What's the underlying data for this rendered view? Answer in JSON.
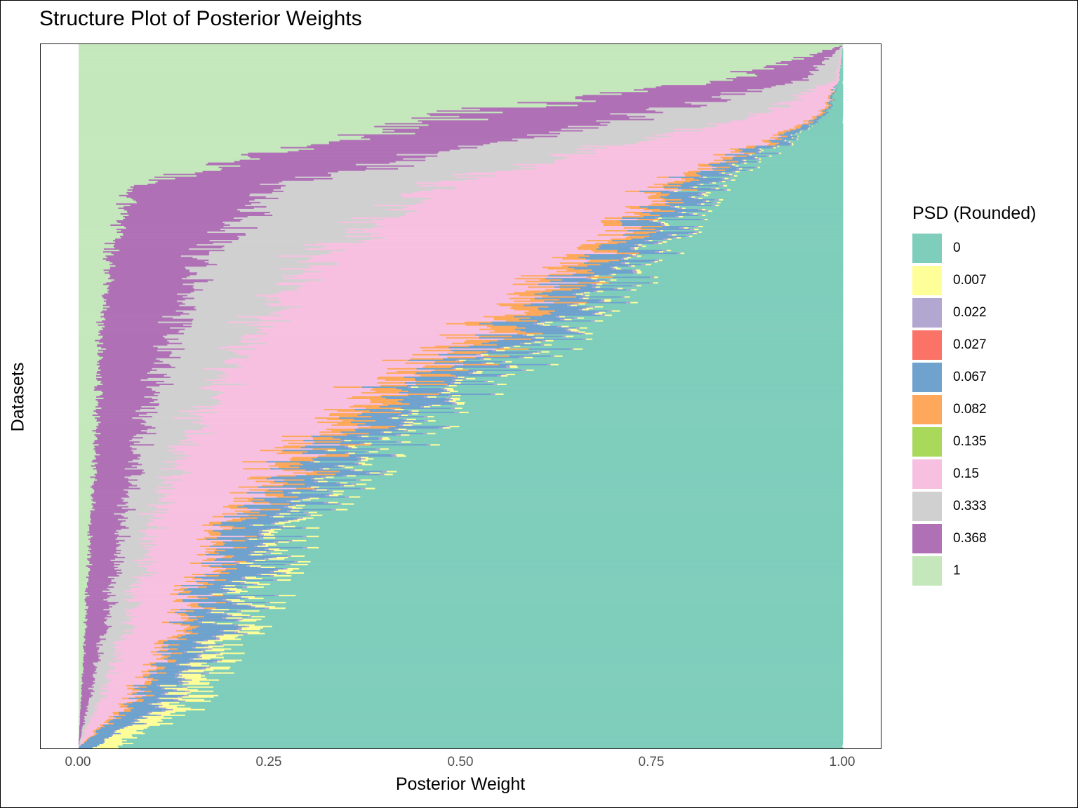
{
  "chart_data": {
    "type": "bar",
    "orientation": "horizontal",
    "stacked": true,
    "title": "Structure Plot of Posterior Weights",
    "xlabel": "Posterior Weight",
    "ylabel": "Datasets",
    "xlim": [
      0,
      1
    ],
    "x_ticks": [
      "0.00",
      "0.25",
      "0.50",
      "0.75",
      "1.00"
    ],
    "legend_title": "PSD (Rounded)",
    "legend_position": "right",
    "grid": false,
    "series": [
      {
        "name": "0",
        "color": "#7fcdbb"
      },
      {
        "name": "0.007",
        "color": "#ffff99"
      },
      {
        "name": "0.022",
        "color": "#b1a7d1"
      },
      {
        "name": "0.027",
        "color": "#fb7266"
      },
      {
        "name": "0.067",
        "color": "#6fa2cd"
      },
      {
        "name": "0.082",
        "color": "#fda85a"
      },
      {
        "name": "0.135",
        "color": "#a8d95b"
      },
      {
        "name": "0.15",
        "color": "#f8c0e0"
      },
      {
        "name": "0.333",
        "color": "#d0d0d0"
      },
      {
        "name": "0.368",
        "color": "#b070b6"
      },
      {
        "name": "1",
        "color": "#c4e8bc"
      }
    ],
    "approx_profile": {
      "description_of_rows": "datasets sorted top to bottom; approximate cumulative posterior weight boundaries at selected relative row positions (0 = top, 1 = bottom)",
      "row_position": [
        0.0,
        0.05,
        0.1,
        0.2,
        0.3,
        0.4,
        0.5,
        0.6,
        0.7,
        0.8,
        0.9,
        0.95,
        1.0
      ],
      "weight_1": [
        1.0,
        0.85,
        0.5,
        0.07,
        0.04,
        0.03,
        0.025,
        0.02,
        0.015,
        0.01,
        0.005,
        0.002,
        0.0
      ],
      "weight_0_368": [
        0.0,
        0.1,
        0.25,
        0.18,
        0.12,
        0.1,
        0.07,
        0.05,
        0.04,
        0.03,
        0.015,
        0.008,
        0.0
      ],
      "weight_0_333": [
        0.0,
        0.04,
        0.15,
        0.2,
        0.15,
        0.1,
        0.08,
        0.05,
        0.04,
        0.03,
        0.02,
        0.01,
        0.0
      ],
      "weight_0_15": [
        0.0,
        0.005,
        0.08,
        0.3,
        0.35,
        0.3,
        0.2,
        0.13,
        0.09,
        0.07,
        0.05,
        0.03,
        0.0
      ],
      "weight_0_082": [
        0.0,
        0.0,
        0.005,
        0.02,
        0.03,
        0.04,
        0.04,
        0.03,
        0.015,
        0.012,
        0.01,
        0.008,
        0.0
      ],
      "weight_0_067": [
        0.0,
        0.0,
        0.005,
        0.04,
        0.05,
        0.06,
        0.06,
        0.06,
        0.06,
        0.05,
        0.04,
        0.035,
        0.02
      ],
      "weight_0_022": [
        0.0,
        0.0,
        0.0,
        0.005,
        0.005,
        0.005,
        0.005,
        0.005,
        0.005,
        0.005,
        0.005,
        0.005,
        0.0
      ],
      "weight_0_007": [
        0.0,
        0.0,
        0.0,
        0.005,
        0.005,
        0.01,
        0.01,
        0.01,
        0.015,
        0.02,
        0.03,
        0.03,
        0.03
      ],
      "weight_0": [
        0.0,
        0.005,
        0.02,
        0.165,
        0.245,
        0.345,
        0.505,
        0.635,
        0.72,
        0.773,
        0.825,
        0.874,
        0.95
      ]
    }
  }
}
